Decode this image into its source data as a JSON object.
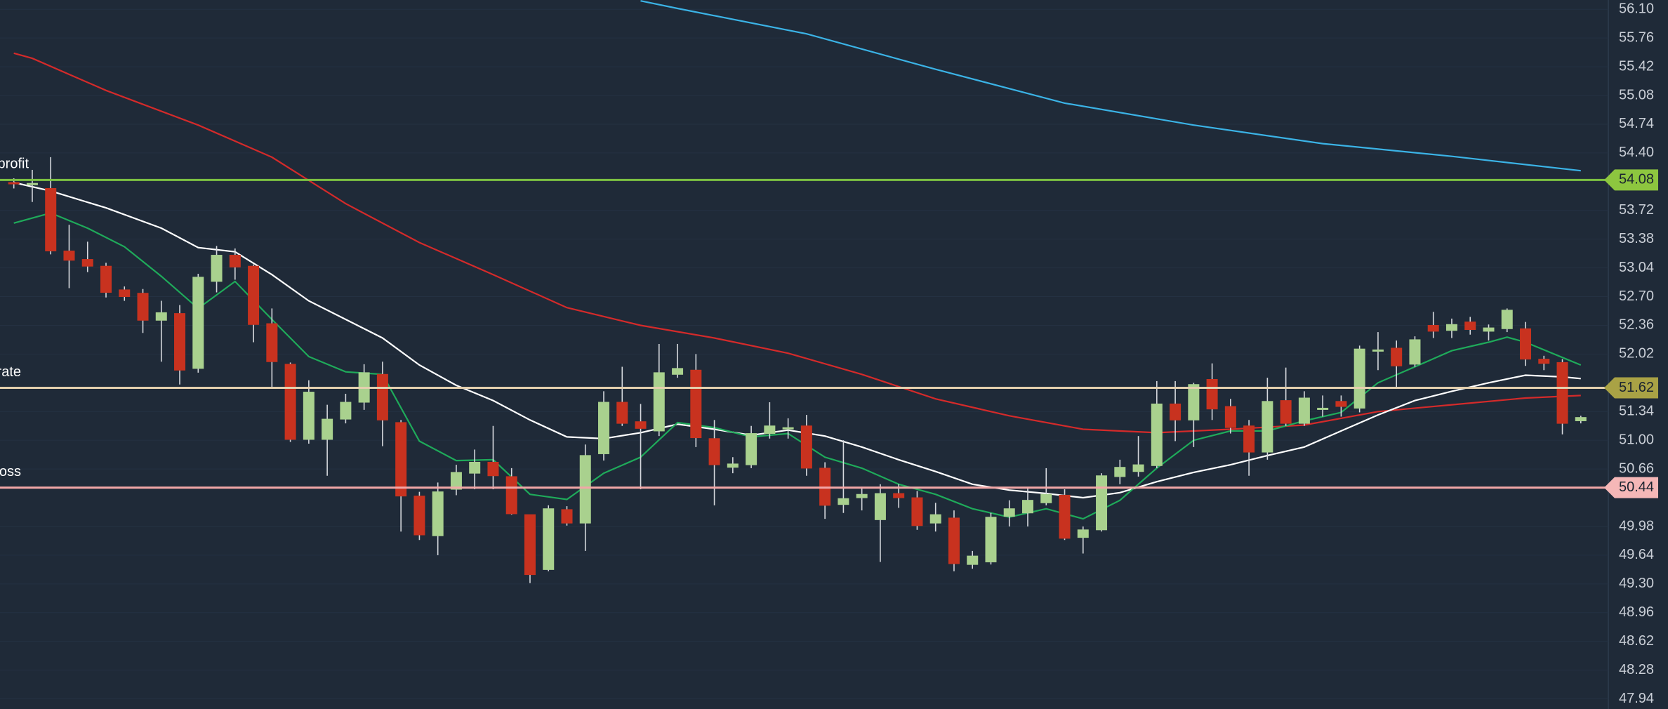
{
  "chart_data": {
    "type": "candlestick",
    "ylim": [
      47.82,
      56.21
    ],
    "yticks": [
      {
        "value": 56.1,
        "label": "56.10"
      },
      {
        "value": 55.76,
        "label": "55.76"
      },
      {
        "value": 55.42,
        "label": "55.42"
      },
      {
        "value": 55.08,
        "label": "55.08"
      },
      {
        "value": 54.74,
        "label": "54.74"
      },
      {
        "value": 54.4,
        "label": "54.40"
      },
      {
        "value": 53.72,
        "label": "53.72"
      },
      {
        "value": 53.38,
        "label": "53.38"
      },
      {
        "value": 53.04,
        "label": "53.04"
      },
      {
        "value": 52.7,
        "label": "52.70"
      },
      {
        "value": 52.36,
        "label": "52.36"
      },
      {
        "value": 52.02,
        "label": "52.02"
      },
      {
        "value": 51.34,
        "label": "51.34"
      },
      {
        "value": 51.0,
        "label": "51.00"
      },
      {
        "value": 50.66,
        "label": "50.66"
      },
      {
        "value": 49.98,
        "label": "49.98"
      },
      {
        "value": 49.64,
        "label": "49.64"
      },
      {
        "value": 49.3,
        "label": "49.30"
      },
      {
        "value": 48.96,
        "label": "48.96"
      },
      {
        "value": 48.62,
        "label": "48.62"
      },
      {
        "value": 48.28,
        "label": "48.28"
      },
      {
        "value": 47.94,
        "label": "47.94"
      }
    ],
    "grid": true,
    "up_color": "#a9d18e",
    "down_color": "#c8321f",
    "open": [
      54.05,
      54.03,
      53.98,
      53.24,
      53.14,
      53.06,
      52.78,
      52.74,
      52.42,
      52.5,
      51.85,
      52.88,
      53.19,
      53.06,
      52.38,
      51.9,
      51.01,
      51.01,
      51.25,
      51.45,
      51.78,
      51.21,
      50.34,
      49.87,
      50.42,
      50.61,
      50.74,
      50.57,
      50.12,
      49.47,
      50.18,
      50.02,
      50.84,
      51.45,
      51.22,
      51.11,
      51.78,
      51.83,
      51.02,
      50.68,
      50.71,
      51.08,
      51.14,
      51.17,
      50.67,
      50.24,
      50.32,
      50.06,
      50.37,
      50.32,
      50.02,
      50.08,
      49.53,
      49.56,
      50.1,
      50.14,
      50.26,
      50.35,
      49.85,
      49.94,
      50.57,
      50.63,
      50.7,
      51.43,
      51.24,
      51.72,
      51.4,
      51.17,
      50.86,
      51.47,
      51.2,
      51.37,
      51.46,
      51.38,
      52.06,
      52.09,
      51.9,
      52.36,
      52.3,
      52.4,
      52.29,
      52.32,
      52.32,
      51.96,
      51.92,
      51.23
    ],
    "high": [
      54.1,
      54.2,
      54.35,
      53.55,
      53.35,
      53.1,
      52.82,
      52.79,
      52.65,
      52.6,
      52.97,
      53.3,
      53.27,
      53.08,
      52.56,
      51.92,
      51.71,
      51.42,
      51.55,
      51.9,
      51.93,
      51.24,
      50.39,
      50.5,
      50.71,
      50.89,
      51.17,
      50.67,
      50.12,
      50.23,
      50.22,
      50.95,
      51.58,
      51.87,
      51.43,
      52.14,
      52.14,
      52.02,
      51.24,
      50.8,
      51.17,
      51.45,
      51.26,
      51.3,
      50.74,
      51.0,
      50.45,
      50.48,
      50.48,
      50.4,
      50.26,
      50.17,
      49.69,
      50.14,
      50.29,
      50.44,
      50.67,
      50.42,
      49.98,
      50.61,
      50.77,
      51.05,
      51.7,
      51.7,
      51.68,
      51.91,
      51.49,
      51.24,
      51.74,
      51.86,
      51.58,
      51.53,
      51.53,
      52.12,
      52.28,
      52.18,
      52.23,
      52.52,
      52.44,
      52.46,
      52.37,
      52.56,
      52.4,
      52.0,
      51.96,
      51.29
    ],
    "low": [
      53.98,
      53.82,
      53.2,
      52.8,
      52.99,
      52.69,
      52.65,
      52.27,
      51.93,
      51.66,
      51.8,
      52.75,
      52.9,
      52.16,
      51.62,
      50.98,
      50.96,
      50.58,
      51.2,
      51.36,
      50.93,
      49.92,
      49.82,
      49.64,
      50.35,
      50.42,
      50.42,
      50.12,
      49.31,
      49.45,
      49.99,
      49.69,
      50.76,
      51.17,
      50.42,
      51.05,
      51.74,
      50.92,
      50.23,
      50.61,
      50.67,
      51.02,
      51.02,
      50.58,
      50.07,
      50.14,
      50.17,
      49.56,
      50.2,
      49.94,
      49.92,
      49.45,
      49.48,
      49.53,
      49.98,
      49.98,
      50.23,
      49.82,
      49.66,
      49.92,
      50.48,
      50.57,
      50.67,
      50.99,
      50.92,
      51.24,
      51.08,
      50.58,
      50.77,
      51.17,
      51.17,
      51.28,
      51.28,
      51.33,
      51.83,
      51.62,
      51.87,
      52.21,
      52.21,
      52.25,
      52.18,
      52.28,
      51.88,
      51.83,
      51.07,
      51.2
    ],
    "close": [
      54.04,
      54.04,
      53.24,
      53.13,
      53.06,
      52.75,
      52.7,
      52.42,
      52.51,
      51.83,
      52.93,
      53.19,
      53.05,
      52.37,
      51.93,
      51.01,
      51.57,
      51.25,
      51.45,
      51.8,
      51.24,
      50.34,
      49.88,
      50.39,
      50.62,
      50.74,
      50.58,
      50.13,
      49.41,
      50.19,
      50.02,
      50.82,
      51.45,
      51.2,
      51.14,
      51.8,
      51.85,
      51.03,
      50.71,
      50.72,
      51.08,
      51.17,
      51.15,
      50.67,
      50.23,
      50.31,
      50.36,
      50.37,
      50.32,
      49.99,
      50.12,
      49.54,
      49.63,
      50.09,
      50.19,
      50.29,
      50.36,
      49.84,
      49.94,
      50.58,
      50.68,
      50.71,
      51.43,
      51.24,
      51.66,
      51.37,
      51.15,
      50.86,
      51.46,
      51.2,
      51.5,
      51.38,
      51.4,
      52.08,
      52.07,
      51.88,
      52.19,
      52.29,
      52.37,
      52.31,
      52.33,
      52.54,
      51.96,
      51.91,
      51.2,
      51.27
    ],
    "series": [
      {
        "color": "#3bb3e6",
        "x": [
          34,
          36,
          43,
          50,
          57,
          64,
          71,
          78,
          85
        ],
        "values": [
          56.2,
          56.11,
          55.81,
          55.39,
          54.99,
          54.73,
          54.51,
          54.36,
          54.19
        ]
      },
      {
        "color": "#d42a2a",
        "x": [
          0,
          1,
          5,
          10,
          14,
          18,
          22,
          26,
          30,
          34,
          38,
          42,
          46,
          50,
          54,
          58,
          62,
          66,
          70,
          74,
          78,
          82,
          85
        ],
        "values": [
          55.58,
          55.52,
          55.14,
          54.73,
          54.35,
          53.8,
          53.34,
          52.96,
          52.57,
          52.36,
          52.21,
          52.03,
          51.78,
          51.49,
          51.29,
          51.13,
          51.09,
          51.13,
          51.18,
          51.34,
          51.42,
          51.5,
          51.53
        ]
      },
      {
        "color": "#ffffff",
        "x": [
          0,
          2,
          5,
          8,
          10,
          12,
          14,
          16,
          18,
          20,
          22,
          24,
          26,
          28,
          30,
          32,
          34,
          36,
          38,
          40,
          42,
          44,
          46,
          48,
          50,
          52,
          54,
          56,
          58,
          60,
          62,
          64,
          66,
          68,
          70,
          72,
          74,
          76,
          78,
          80,
          82,
          84,
          85
        ],
        "values": [
          54.05,
          53.95,
          53.75,
          53.51,
          53.28,
          53.23,
          52.96,
          52.65,
          52.43,
          52.21,
          51.89,
          51.65,
          51.47,
          51.24,
          51.04,
          51.02,
          51.09,
          51.19,
          51.13,
          51.06,
          51.12,
          51.05,
          50.92,
          50.77,
          50.63,
          50.48,
          50.41,
          50.37,
          50.32,
          50.38,
          50.51,
          50.62,
          50.71,
          50.82,
          50.92,
          51.11,
          51.3,
          51.47,
          51.58,
          51.68,
          51.77,
          51.75,
          51.73
        ]
      },
      {
        "color": "#1faa5a",
        "x": [
          0,
          2,
          4,
          6,
          8,
          10,
          12,
          14,
          16,
          18,
          20,
          22,
          24,
          26,
          28,
          30,
          32,
          34,
          36,
          38,
          40,
          42,
          44,
          46,
          48,
          50,
          52,
          54,
          56,
          58,
          60,
          62,
          64,
          66,
          68,
          70,
          72,
          74,
          76,
          78,
          80,
          81,
          82,
          84,
          85
        ],
        "values": [
          53.57,
          53.69,
          53.51,
          53.29,
          52.94,
          52.56,
          52.88,
          52.43,
          51.99,
          51.81,
          51.78,
          50.99,
          50.76,
          50.77,
          50.36,
          50.3,
          50.61,
          50.8,
          51.21,
          51.15,
          51.04,
          51.08,
          50.8,
          50.67,
          50.48,
          50.36,
          50.19,
          50.09,
          50.19,
          50.07,
          50.29,
          50.67,
          51.0,
          51.11,
          51.11,
          51.23,
          51.33,
          51.68,
          51.87,
          52.06,
          52.16,
          52.22,
          52.16,
          51.98,
          51.89
        ]
      }
    ],
    "levels": [
      {
        "label": "profit",
        "value": 54.08,
        "color": "#7cc242",
        "label_color": "#8dc63f"
      },
      {
        "label": "rate",
        "value": 51.62,
        "color": "#e3cfae",
        "label_color": "#a9a245"
      },
      {
        "label": "loss",
        "value": 50.44,
        "color": "#f2a7a7",
        "label_color": "#f5b7b7"
      }
    ]
  }
}
